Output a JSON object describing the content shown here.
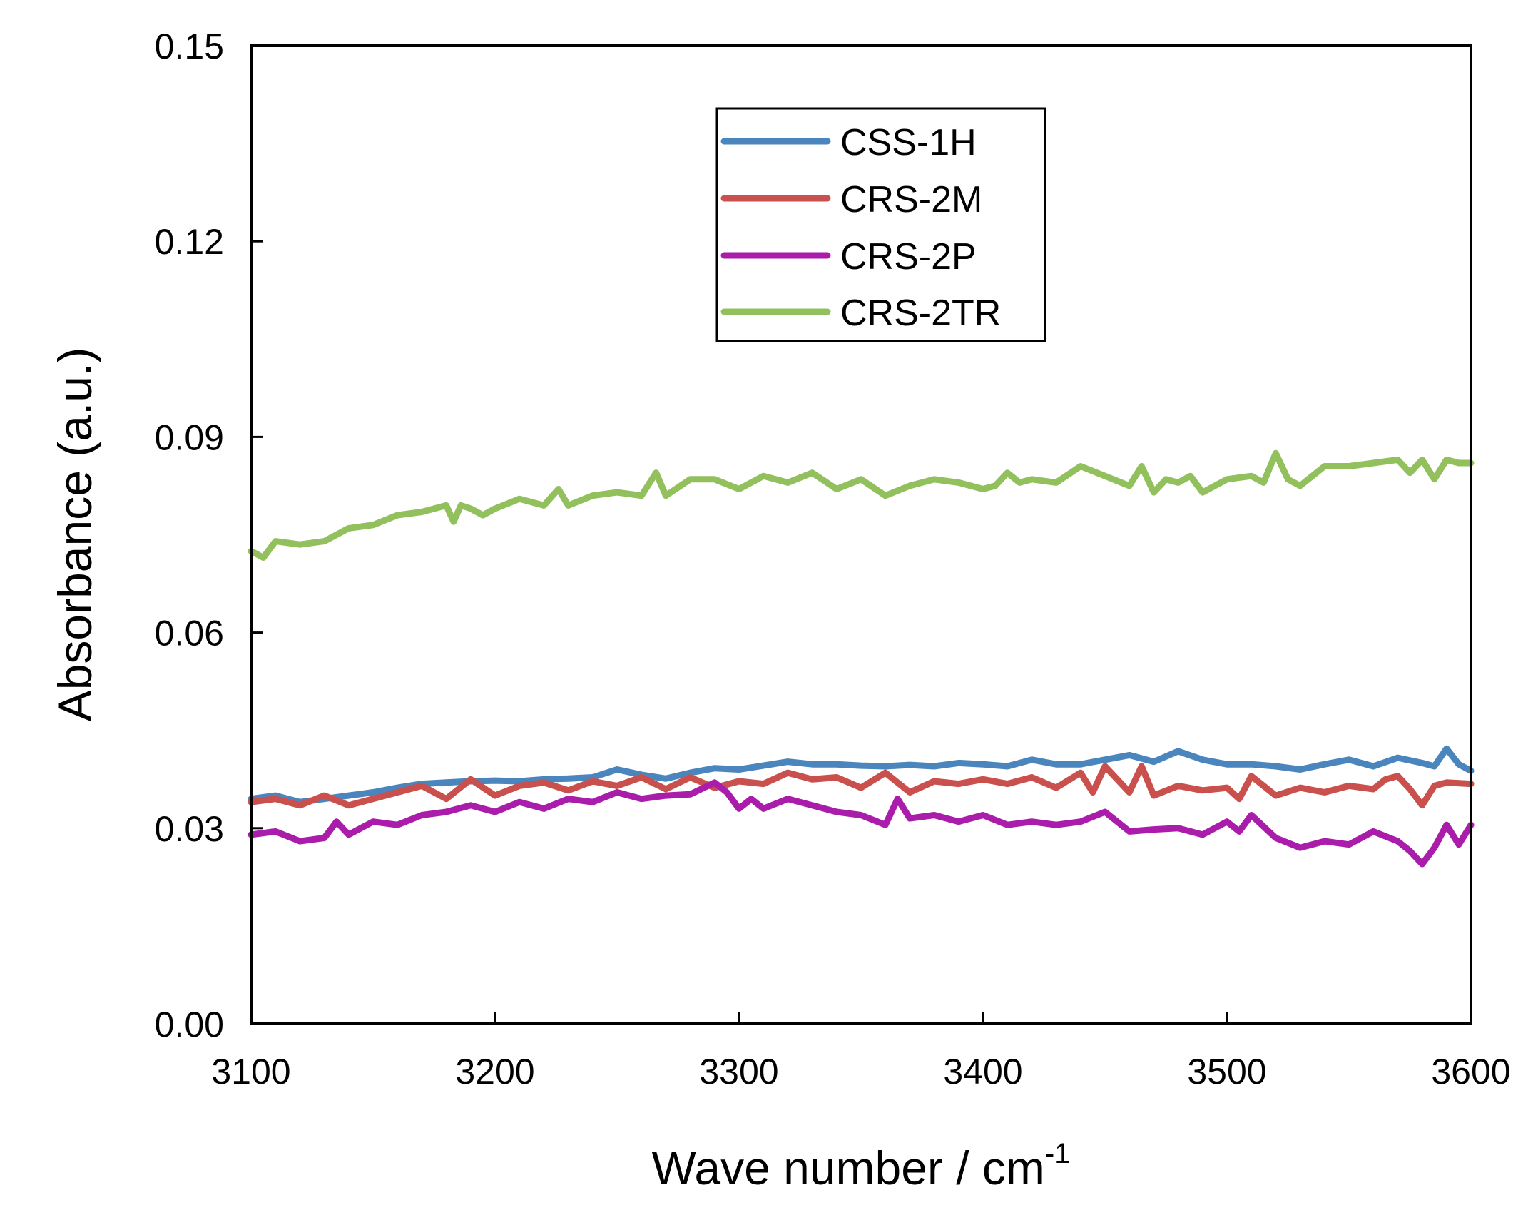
{
  "chart_data": {
    "type": "line",
    "title": "",
    "xlabel": "Wave number / cm",
    "xlabel_superscript": "-1",
    "ylabel": "Absorbance (a.u.)",
    "xlim": [
      3100,
      3600
    ],
    "ylim": [
      0,
      0.15
    ],
    "xticks": [
      3100,
      3200,
      3300,
      3400,
      3500,
      3600
    ],
    "xtick_labels": [
      "3100",
      "3200",
      "3300",
      "3400",
      "3500",
      "3600"
    ],
    "yticks": [
      0,
      0.03,
      0.06,
      0.09,
      0.12,
      0.15
    ],
    "ytick_labels": [
      "0.00",
      "0.03",
      "0.06",
      "0.09",
      "0.12",
      "0.15"
    ],
    "grid": false,
    "legend_position": "top-center",
    "series": [
      {
        "name": "CSS-1H",
        "color": "#4a86bd",
        "x": [
          3100,
          3110,
          3120,
          3130,
          3140,
          3150,
          3160,
          3170,
          3180,
          3190,
          3200,
          3210,
          3220,
          3230,
          3240,
          3250,
          3260,
          3270,
          3280,
          3290,
          3300,
          3310,
          3320,
          3330,
          3340,
          3350,
          3360,
          3370,
          3380,
          3390,
          3400,
          3410,
          3420,
          3430,
          3440,
          3450,
          3460,
          3470,
          3480,
          3490,
          3500,
          3510,
          3520,
          3530,
          3540,
          3550,
          3560,
          3570,
          3580,
          3585,
          3590,
          3595,
          3600
        ],
        "y": [
          0.0345,
          0.035,
          0.034,
          0.0345,
          0.035,
          0.0355,
          0.0362,
          0.0368,
          0.037,
          0.0372,
          0.0373,
          0.0372,
          0.0375,
          0.0376,
          0.0378,
          0.039,
          0.0382,
          0.0376,
          0.0385,
          0.0392,
          0.039,
          0.0396,
          0.0402,
          0.0398,
          0.0398,
          0.0396,
          0.0395,
          0.0397,
          0.0395,
          0.04,
          0.0398,
          0.0395,
          0.0405,
          0.0398,
          0.0398,
          0.0405,
          0.0412,
          0.0402,
          0.0418,
          0.0405,
          0.0398,
          0.0398,
          0.0395,
          0.039,
          0.0398,
          0.0405,
          0.0395,
          0.0408,
          0.04,
          0.0395,
          0.0422,
          0.0398,
          0.0388
        ]
      },
      {
        "name": "CRS-2M",
        "color": "#c9504d",
        "x": [
          3100,
          3110,
          3120,
          3130,
          3140,
          3150,
          3160,
          3170,
          3180,
          3190,
          3200,
          3210,
          3220,
          3230,
          3240,
          3250,
          3260,
          3270,
          3280,
          3290,
          3300,
          3310,
          3320,
          3330,
          3340,
          3350,
          3360,
          3370,
          3380,
          3390,
          3400,
          3410,
          3420,
          3430,
          3440,
          3445,
          3450,
          3460,
          3465,
          3470,
          3480,
          3490,
          3500,
          3505,
          3510,
          3520,
          3530,
          3540,
          3550,
          3560,
          3565,
          3570,
          3575,
          3580,
          3585,
          3590,
          3600
        ],
        "y": [
          0.034,
          0.0345,
          0.0335,
          0.035,
          0.0335,
          0.0345,
          0.0355,
          0.0365,
          0.0345,
          0.0375,
          0.035,
          0.0365,
          0.037,
          0.0358,
          0.0372,
          0.0365,
          0.0378,
          0.036,
          0.0378,
          0.0362,
          0.0372,
          0.0368,
          0.0385,
          0.0375,
          0.0378,
          0.0362,
          0.0385,
          0.0355,
          0.0372,
          0.0368,
          0.0375,
          0.0368,
          0.0378,
          0.0362,
          0.0385,
          0.0355,
          0.0395,
          0.0355,
          0.0395,
          0.035,
          0.0365,
          0.0358,
          0.0362,
          0.0345,
          0.038,
          0.035,
          0.0362,
          0.0355,
          0.0365,
          0.036,
          0.0375,
          0.038,
          0.036,
          0.0335,
          0.0365,
          0.037,
          0.0368
        ]
      },
      {
        "name": "CRS-2P",
        "color": "#aa1caa",
        "x": [
          3100,
          3110,
          3120,
          3130,
          3135,
          3140,
          3150,
          3160,
          3170,
          3180,
          3190,
          3200,
          3210,
          3220,
          3230,
          3240,
          3250,
          3260,
          3270,
          3280,
          3290,
          3295,
          3300,
          3305,
          3310,
          3320,
          3330,
          3340,
          3350,
          3360,
          3365,
          3370,
          3380,
          3390,
          3400,
          3410,
          3420,
          3430,
          3440,
          3450,
          3460,
          3470,
          3480,
          3490,
          3500,
          3505,
          3510,
          3520,
          3530,
          3540,
          3550,
          3560,
          3570,
          3575,
          3580,
          3585,
          3590,
          3595,
          3600
        ],
        "y": [
          0.029,
          0.0295,
          0.028,
          0.0285,
          0.031,
          0.029,
          0.031,
          0.0305,
          0.032,
          0.0325,
          0.0335,
          0.0325,
          0.034,
          0.033,
          0.0345,
          0.034,
          0.0355,
          0.0345,
          0.035,
          0.0352,
          0.037,
          0.0355,
          0.033,
          0.0345,
          0.033,
          0.0345,
          0.0335,
          0.0325,
          0.032,
          0.0305,
          0.0345,
          0.0315,
          0.032,
          0.031,
          0.032,
          0.0305,
          0.031,
          0.0305,
          0.031,
          0.0325,
          0.0295,
          0.0298,
          0.03,
          0.029,
          0.031,
          0.0295,
          0.032,
          0.0285,
          0.027,
          0.028,
          0.0275,
          0.0295,
          0.028,
          0.0265,
          0.0245,
          0.027,
          0.0305,
          0.0275,
          0.0305
        ]
      },
      {
        "name": "CRS-2TR",
        "color": "#92c05c",
        "x": [
          3100,
          3105,
          3110,
          3120,
          3130,
          3140,
          3150,
          3160,
          3170,
          3180,
          3183,
          3186,
          3190,
          3195,
          3200,
          3210,
          3220,
          3226,
          3230,
          3240,
          3250,
          3260,
          3266,
          3270,
          3280,
          3290,
          3300,
          3310,
          3320,
          3330,
          3340,
          3350,
          3360,
          3370,
          3380,
          3390,
          3400,
          3405,
          3410,
          3415,
          3420,
          3430,
          3440,
          3450,
          3460,
          3465,
          3470,
          3475,
          3480,
          3485,
          3490,
          3500,
          3510,
          3515,
          3520,
          3525,
          3530,
          3540,
          3550,
          3560,
          3570,
          3575,
          3580,
          3585,
          3590,
          3595,
          3600
        ],
        "y": [
          0.0725,
          0.0715,
          0.074,
          0.0735,
          0.074,
          0.076,
          0.0765,
          0.078,
          0.0785,
          0.0795,
          0.077,
          0.0795,
          0.079,
          0.078,
          0.079,
          0.0805,
          0.0795,
          0.082,
          0.0795,
          0.081,
          0.0815,
          0.081,
          0.0845,
          0.081,
          0.0835,
          0.0835,
          0.082,
          0.084,
          0.083,
          0.0845,
          0.082,
          0.0835,
          0.081,
          0.0825,
          0.0835,
          0.083,
          0.082,
          0.0825,
          0.0845,
          0.083,
          0.0835,
          0.083,
          0.0855,
          0.084,
          0.0825,
          0.0855,
          0.0815,
          0.0835,
          0.083,
          0.084,
          0.0815,
          0.0835,
          0.084,
          0.083,
          0.0875,
          0.0835,
          0.0825,
          0.0855,
          0.0855,
          0.086,
          0.0865,
          0.0845,
          0.0865,
          0.0835,
          0.0865,
          0.086,
          0.086
        ]
      }
    ]
  }
}
